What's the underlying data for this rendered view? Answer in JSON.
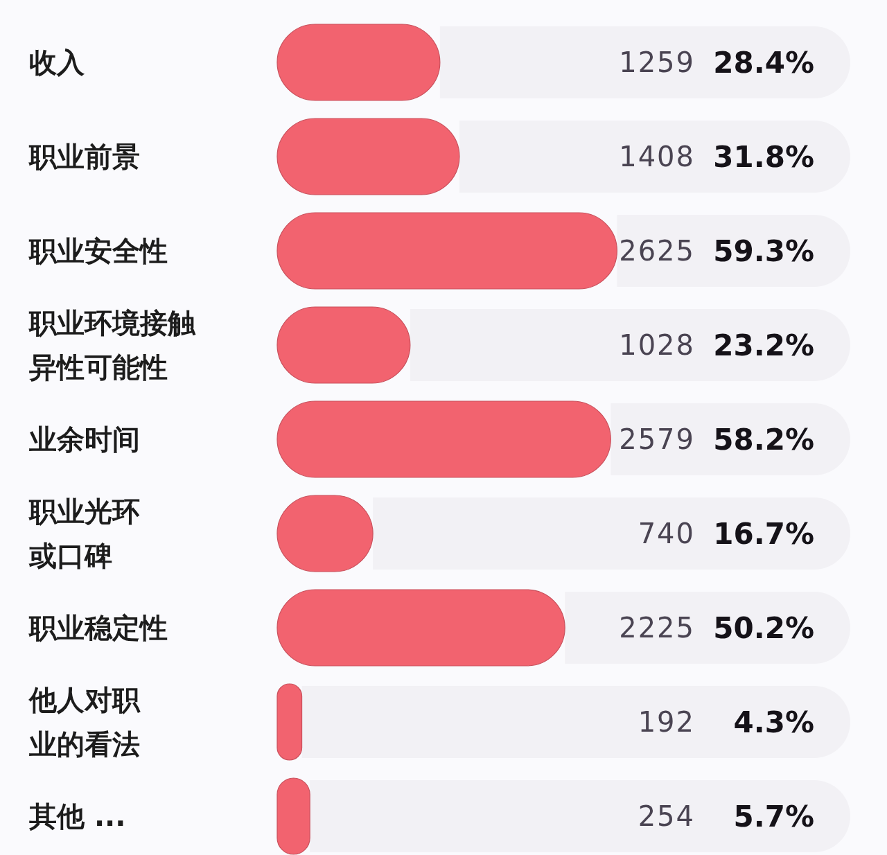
{
  "chart_data": {
    "type": "bar",
    "orientation": "horizontal",
    "categories": [
      "收入",
      "职业前景",
      "职业安全性",
      "职业环境接触异性可能性",
      "业余时间",
      "职业光环或口碑",
      "职业稳定性",
      "他人对职业的看法",
      "其他 ..."
    ],
    "values": [
      28.4,
      31.8,
      59.3,
      23.2,
      58.2,
      16.7,
      50.2,
      4.3,
      5.7
    ],
    "value_labels": [
      "28.4%",
      "31.8%",
      "59.3%",
      "23.2%",
      "58.2%",
      "16.7%",
      "50.2%",
      "4.3%",
      "5.7%"
    ],
    "annotations": [
      "1259",
      "1408",
      "2625",
      "1028",
      "2579",
      "740",
      "2225",
      "192",
      "254"
    ],
    "color": "#f2636f",
    "xlim": [
      0,
      100
    ],
    "tick_labels": "y"
  }
}
